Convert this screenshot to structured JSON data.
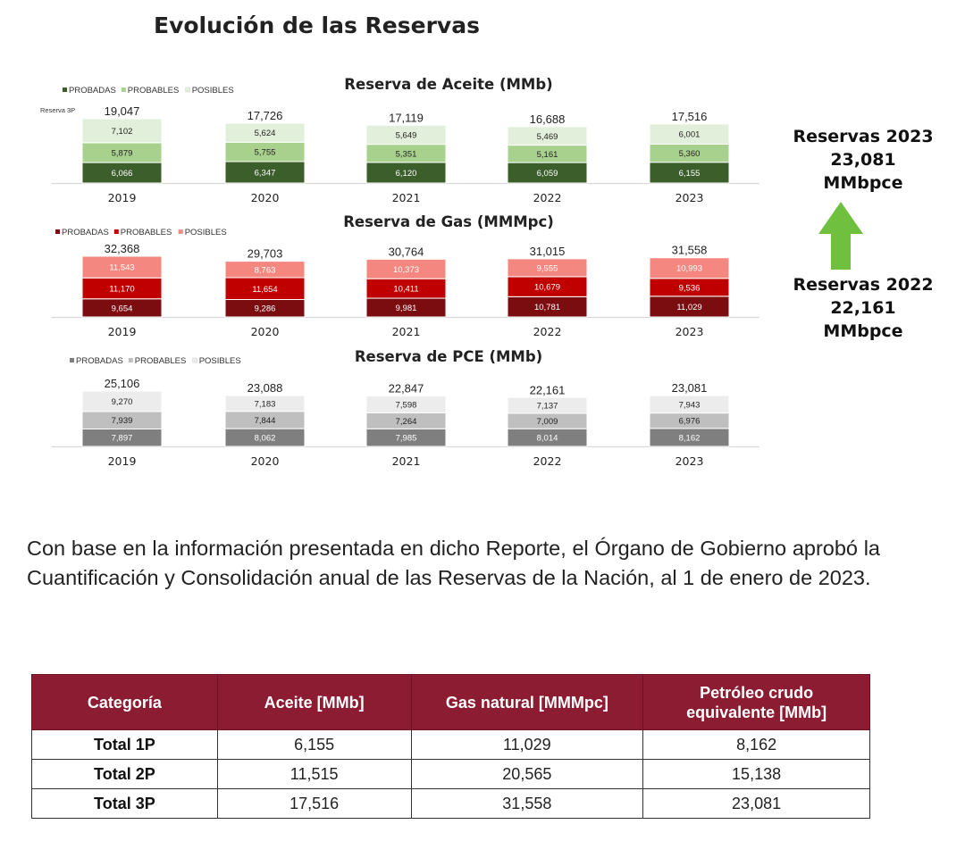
{
  "page_title": "Evolución de las Reservas",
  "chart_data": [
    {
      "type": "bar",
      "stacked": true,
      "title": "Reserva de Aceite (MMb)",
      "series_label": "Reserva 3P",
      "categories": [
        "2019",
        "2020",
        "2021",
        "2022",
        "2023"
      ],
      "series": [
        {
          "name": "PROBADAS",
          "values": [
            6066,
            6347,
            6120,
            6059,
            6155
          ],
          "labels": [
            "6,066",
            "6,347",
            "6,120",
            "6,059",
            "6,155"
          ],
          "color": "#3b5e2b",
          "text_color": "#ffffff"
        },
        {
          "name": "PROBABLES",
          "values": [
            5879,
            5755,
            5351,
            5161,
            5360
          ],
          "labels": [
            "5,879",
            "5,755",
            "5,351",
            "5,161",
            "5,360"
          ],
          "color": "#a9d18e",
          "text_color": "#222222"
        },
        {
          "name": "POSIBLES",
          "values": [
            7102,
            5624,
            5649,
            5469,
            6001
          ],
          "labels": [
            "7,102",
            "5,624",
            "5,649",
            "5,469",
            "6,001"
          ],
          "color": "#e2efda",
          "text_color": "#222222"
        }
      ],
      "totals": [
        19047,
        17726,
        17119,
        16688,
        17516
      ],
      "total_labels": [
        "19,047",
        "17,726",
        "17,119",
        "16,688",
        "17,516"
      ],
      "legend_position": "top-left"
    },
    {
      "type": "bar",
      "stacked": true,
      "title": "Reserva de Gas (MMMpc)",
      "categories": [
        "2019",
        "2020",
        "2021",
        "2022",
        "2023"
      ],
      "series": [
        {
          "name": "PROBADAS",
          "values": [
            9654,
            9286,
            9981,
            10781,
            11029
          ],
          "labels": [
            "9,654",
            "9,286",
            "9,981",
            "10,781",
            "11,029"
          ],
          "color": "#7b0c10",
          "text_color": "#ffffff"
        },
        {
          "name": "PROBABLES",
          "values": [
            11170,
            11654,
            10411,
            10679,
            9536
          ],
          "labels": [
            "11,170",
            "11,654",
            "10,411",
            "10,679",
            "9,536"
          ],
          "color": "#c00000",
          "text_color": "#ffffff"
        },
        {
          "name": "POSIBLES",
          "values": [
            11543,
            8763,
            10373,
            9555,
            10993
          ],
          "labels": [
            "11,543",
            "8,763",
            "10,373",
            "9,555",
            "10,993"
          ],
          "color": "#f4877f",
          "text_color": "#ffffff"
        }
      ],
      "totals": [
        32368,
        29703,
        30764,
        31015,
        31558
      ],
      "total_labels": [
        "32,368",
        "29,703",
        "30,764",
        "31,015",
        "31,558"
      ],
      "legend_position": "top-left"
    },
    {
      "type": "bar",
      "stacked": true,
      "title": "Reserva de PCE (MMb)",
      "categories": [
        "2019",
        "2020",
        "2021",
        "2022",
        "2023"
      ],
      "series": [
        {
          "name": "PROBADAS",
          "values": [
            7897,
            8062,
            7985,
            8014,
            8162
          ],
          "labels": [
            "7,897",
            "8,062",
            "7,985",
            "8,014",
            "8,162"
          ],
          "color": "#7f7f7f",
          "text_color": "#ffffff"
        },
        {
          "name": "PROBABLES",
          "values": [
            7939,
            7844,
            7264,
            7009,
            6976
          ],
          "labels": [
            "7,939",
            "7,844",
            "7,264",
            "7,009",
            "6,976"
          ],
          "color": "#bfbfbf",
          "text_color": "#222222"
        },
        {
          "name": "POSIBLES",
          "values": [
            9270,
            7183,
            7598,
            7137,
            7943
          ],
          "labels": [
            "9,270",
            "7,183",
            "7,598",
            "7,137",
            "7,943"
          ],
          "color": "#ececec",
          "text_color": "#222222"
        }
      ],
      "totals": [
        25106,
        23088,
        22847,
        22161,
        23081
      ],
      "total_labels": [
        "25,106",
        "23,088",
        "22,847",
        "22,161",
        "23,081"
      ],
      "legend_position": "top-left"
    }
  ],
  "side_panel": {
    "top": {
      "line1": "Reservas 2023",
      "line2": "23,081",
      "line3": "MMbpce"
    },
    "bottom": {
      "line1": "Reservas 2022",
      "line2": "22,161",
      "line3": "MMbpce"
    },
    "arrow_color": "#70c040"
  },
  "paragraph": "Con base en la información presentada en dicho Reporte, el Órgano de Gobierno aprobó la Cuantificación y Consolidación anual de las Reservas de la Nación, al 1 de enero de 2023.",
  "table": {
    "headers": [
      "Categoría",
      "Aceite [MMb]",
      "Gas natural [MMMpc]",
      "Petróleo crudo equivalente [MMb]"
    ],
    "rows": [
      [
        "Total 1P",
        "6,155",
        "11,029",
        "8,162"
      ],
      [
        "Total 2P",
        "11,515",
        "20,565",
        "15,138"
      ],
      [
        "Total 3P",
        "17,516",
        "31,558",
        "23,081"
      ]
    ],
    "header_color": "#8b1c32"
  }
}
